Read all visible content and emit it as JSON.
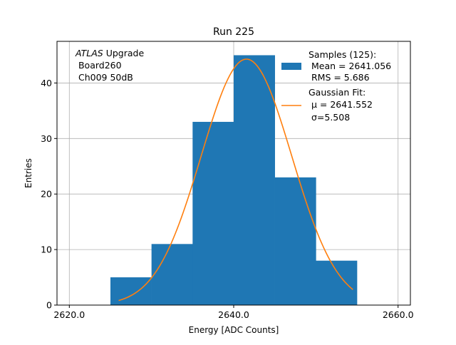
{
  "chart_data": {
    "type": "bar",
    "title": "Run 225",
    "xlabel": "Energy [ADC Counts]",
    "ylabel": "Entries",
    "xlim": [
      2618.5,
      2661.5
    ],
    "ylim": [
      0,
      47.5
    ],
    "xticks": [
      2620,
      2640,
      2660
    ],
    "xtick_labels": [
      "2620.0",
      "2640.0",
      "2660.0"
    ],
    "yticks": [
      0,
      10,
      20,
      30,
      40
    ],
    "ytick_labels": [
      "0",
      "10",
      "20",
      "30",
      "40"
    ],
    "grid": true,
    "legend_position": "top-right",
    "histogram": {
      "name": "Samples (125):",
      "stat_lines": [
        " Mean = 2641.056",
        " RMS = 5.686"
      ],
      "color": "#1f77b4",
      "bin_edges": [
        2625,
        2630,
        2635,
        2640,
        2645,
        2650,
        2655
      ],
      "counts": [
        5,
        11,
        33,
        45,
        23,
        8
      ]
    },
    "fit": {
      "name": "Gaussian Fit:",
      "stat_lines": [
        " μ = 2641.552",
        " σ=5.508"
      ],
      "color": "#ff7f0e",
      "mean": 2641.552,
      "sigma": 5.508,
      "peak": 44.3,
      "x_range": [
        2626,
        2654.5
      ]
    },
    "annotation": {
      "emph": "ATLAS",
      "rest": " Upgrade",
      "lines": [
        " Board260",
        " Ch009 50dB"
      ]
    }
  }
}
